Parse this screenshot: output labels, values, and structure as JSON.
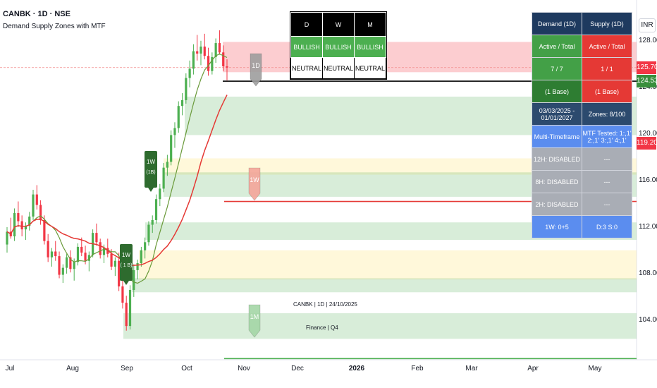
{
  "legend": {
    "symbol_line": "CANBK · 1D · NSE",
    "indicator_name": "Demand Supply Zones with MTF"
  },
  "currency_button": "INR",
  "colors": {
    "up": "#26a69a",
    "down": "#ef5350",
    "up_candle": "#4caf50",
    "down_candle": "#f23645",
    "demand_zone": "rgba(76,175,80,0.22)",
    "supply_zone": "rgba(242,54,69,0.25)",
    "neutral_zone": "rgba(255,235,150,0.35)",
    "green_ma": "#6a9a3a",
    "red_ma": "#e53935"
  },
  "chart_data": {
    "type": "candlestick",
    "title": "CANBK · 1D · NSE",
    "y_ticks": [
      128.0,
      124.0,
      120.0,
      116.0,
      112.0,
      108.0,
      104.0
    ],
    "ylim": [
      100.6,
      131.5
    ],
    "x_ticks": [
      "Jul",
      "Aug",
      "Sep",
      "Oct",
      "Nov",
      "Dec",
      "2026",
      "Feb",
      "Mar",
      "Apr",
      "May"
    ],
    "price_tags": [
      {
        "value": "125.70",
        "color": "#f23645"
      },
      {
        "value": "124.53",
        "color": "#388e3c"
      },
      {
        "value": "119.20",
        "color": "#f23645"
      }
    ],
    "zones": [
      {
        "kind": "supply",
        "top": 127.9,
        "bottom": 125.3
      },
      {
        "kind": "demand",
        "top": 123.2,
        "bottom": 119.9
      },
      {
        "kind": "neutral",
        "top": 117.9,
        "bottom": 116.5
      },
      {
        "kind": "demand",
        "top": 116.7,
        "bottom": 114.6
      },
      {
        "kind": "demand",
        "top": 112.4,
        "bottom": 110.9
      },
      {
        "kind": "neutral",
        "top": 110.0,
        "bottom": 107.5
      },
      {
        "kind": "demand",
        "top": 107.6,
        "bottom": 106.4
      },
      {
        "kind": "demand",
        "top": 104.6,
        "bottom": 102.4
      }
    ],
    "levels": [
      {
        "value": 124.53,
        "color": "#000000"
      },
      {
        "value": 114.2,
        "color": "#e53935"
      },
      {
        "value": 100.7,
        "color": "#4caf50"
      },
      {
        "value": 125.7,
        "color": "#f28b8b"
      }
    ],
    "zone_labels": [
      {
        "text": "1D",
        "kind": "supply-gray"
      },
      {
        "text": "1W",
        "kind": "supply"
      },
      {
        "text": "1M",
        "kind": "demand"
      }
    ],
    "bubbles": [
      {
        "line1": "1W",
        "line2": "(1B)"
      },
      {
        "line1": "1W",
        "line2": "( 1 B)"
      }
    ],
    "candles_approx": [
      [
        110.5,
        112.0,
        109.8,
        111.6
      ],
      [
        111.6,
        112.8,
        111.0,
        111.2
      ],
      [
        111.2,
        113.6,
        110.8,
        113.2
      ],
      [
        113.2,
        114.2,
        112.0,
        112.5
      ],
      [
        112.5,
        113.0,
        111.2,
        111.8
      ],
      [
        111.8,
        112.4,
        110.9,
        112.1
      ],
      [
        112.1,
        113.3,
        111.7,
        112.9
      ],
      [
        112.9,
        115.2,
        112.6,
        114.8
      ],
      [
        114.8,
        115.6,
        113.5,
        113.9
      ],
      [
        113.9,
        114.3,
        112.2,
        112.6
      ],
      [
        112.6,
        113.0,
        110.5,
        110.8
      ],
      [
        110.8,
        111.4,
        109.0,
        109.4
      ],
      [
        109.4,
        110.2,
        108.6,
        109.9
      ],
      [
        109.9,
        110.8,
        109.1,
        109.5
      ],
      [
        109.5,
        109.9,
        107.6,
        107.9
      ],
      [
        107.9,
        108.8,
        107.2,
        108.5
      ],
      [
        108.5,
        109.7,
        108.0,
        109.4
      ],
      [
        109.4,
        110.0,
        108.1,
        108.4
      ],
      [
        108.4,
        109.3,
        107.4,
        109.0
      ],
      [
        109.0,
        110.6,
        108.7,
        110.3
      ],
      [
        110.3,
        111.1,
        109.5,
        109.8
      ],
      [
        109.8,
        110.4,
        108.8,
        109.1
      ],
      [
        109.1,
        109.9,
        108.2,
        109.6
      ],
      [
        109.6,
        111.8,
        109.4,
        111.5
      ],
      [
        111.5,
        112.3,
        110.4,
        110.7
      ],
      [
        110.7,
        111.0,
        109.3,
        109.6
      ],
      [
        109.6,
        110.5,
        108.9,
        110.2
      ],
      [
        110.2,
        111.0,
        109.4,
        109.7
      ],
      [
        109.7,
        110.1,
        108.3,
        108.6
      ],
      [
        108.6,
        109.4,
        107.8,
        109.1
      ],
      [
        109.1,
        109.8,
        106.5,
        106.9
      ],
      [
        106.9,
        107.4,
        105.0,
        105.5
      ],
      [
        105.5,
        106.1,
        103.1,
        103.5
      ],
      [
        103.5,
        107.0,
        103.2,
        106.6
      ],
      [
        106.6,
        108.8,
        106.0,
        108.3
      ],
      [
        108.3,
        109.2,
        107.5,
        108.9
      ],
      [
        108.9,
        110.3,
        108.6,
        110.0
      ],
      [
        110.0,
        111.1,
        109.3,
        110.7
      ],
      [
        110.7,
        112.5,
        110.4,
        112.2
      ],
      [
        112.2,
        113.0,
        111.5,
        112.6
      ],
      [
        112.6,
        114.8,
        112.3,
        114.4
      ],
      [
        114.4,
        115.7,
        113.8,
        115.3
      ],
      [
        115.3,
        117.5,
        115.0,
        117.1
      ],
      [
        117.1,
        118.2,
        116.4,
        117.6
      ],
      [
        117.6,
        120.3,
        117.3,
        119.9
      ],
      [
        119.9,
        121.0,
        118.8,
        120.5
      ],
      [
        120.5,
        122.8,
        120.1,
        122.4
      ],
      [
        122.4,
        123.5,
        121.6,
        122.9
      ],
      [
        122.9,
        125.2,
        122.6,
        124.8
      ],
      [
        124.8,
        126.3,
        124.0,
        125.6
      ],
      [
        125.6,
        127.7,
        125.1,
        127.1
      ],
      [
        127.1,
        128.5,
        126.3,
        126.9
      ],
      [
        126.9,
        128.0,
        125.9,
        127.5
      ],
      [
        127.5,
        128.6,
        126.4,
        126.7
      ],
      [
        126.7,
        127.4,
        125.0,
        125.4
      ],
      [
        125.4,
        127.0,
        125.1,
        126.6
      ],
      [
        126.6,
        128.2,
        126.1,
        127.8
      ],
      [
        127.8,
        128.9,
        126.8,
        127.0
      ],
      [
        127.0,
        127.6,
        125.4,
        125.8
      ],
      [
        125.8,
        126.4,
        124.6,
        125.7
      ]
    ]
  },
  "mtf_table": {
    "headers": [
      "D",
      "W",
      "M"
    ],
    "row1": [
      "BULLISH",
      "BULLISH",
      "BULLISH"
    ],
    "row2": [
      "NEUTRAL",
      "NEUTRAL",
      "NEUTRAL"
    ]
  },
  "stats_table": {
    "rows": [
      {
        "left": "Demand (1D)",
        "right": "Supply (1D)",
        "lbg": "#1e3a5f",
        "rbg": "#1e3a5f"
      },
      {
        "left": "Active / Total",
        "right": "Active / Total",
        "lbg": "#43a047",
        "rbg": "#e53935"
      },
      {
        "left": "7 / 7",
        "right": "1 / 1",
        "lbg": "#43a047",
        "rbg": "#e53935"
      },
      {
        "left": "(1 Base)",
        "right": "(1 Base)",
        "lbg": "#2e7d32",
        "rbg": "#e53935"
      },
      {
        "left": "03/03/2025 - 01/01/2027",
        "right": "Zones: 8/100",
        "lbg": "#2c4a6e",
        "rbg": "#2c4a6e"
      },
      {
        "left": "Multi-Timeframe",
        "right": "MTF Tested: 1:,1' 2:,1' 3:,1' 4:,1'",
        "lbg": "#5b8def",
        "rbg": "#5b8def"
      },
      {
        "left": "12H: DISABLED",
        "right": "---",
        "lbg": "#a9adb5",
        "rbg": "#a9adb5"
      },
      {
        "left": "8H: DISABLED",
        "right": "---",
        "lbg": "#a9adb5",
        "rbg": "#a9adb5"
      },
      {
        "left": "2H: DISABLED",
        "right": "---",
        "lbg": "#a9adb5",
        "rbg": "#a9adb5"
      },
      {
        "left": "1W: 0+5",
        "right": "D:3 S:0",
        "lbg": "#5b8def",
        "rbg": "#5b8def"
      }
    ]
  },
  "info_box": {
    "line1": "CANBK | 1D | 24/10/2025",
    "line2": "Finance | Q4"
  }
}
